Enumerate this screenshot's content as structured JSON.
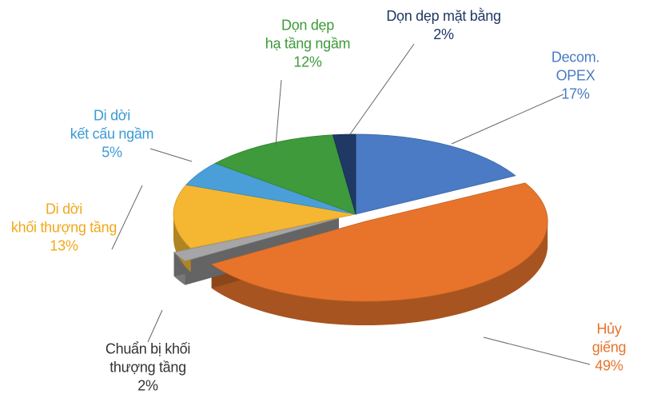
{
  "chart_data": {
    "type": "pie3d",
    "categories": [
      "Decom. OPEX",
      "Hủy giếng",
      "Chuẩn bị khối\nthượng tầng",
      "Di dời\nkhối thượng tầng",
      "Di dời\nkết cấu ngầm",
      "Dọn dẹp\nhạ tầng ngầm",
      "Dọn dẹp mặt bằng"
    ],
    "values": [
      17,
      49,
      2,
      13,
      5,
      12,
      2
    ],
    "value_labels": [
      "17%",
      "49%",
      "2%",
      "13%",
      "5%",
      "12%",
      "2%"
    ],
    "colors": [
      "#4a7bc4",
      "#e8742c",
      "#a6a6a6",
      "#f5b731",
      "#4a9fd8",
      "#3e9a3a",
      "#1f3864"
    ],
    "exploded": [
      1,
      2
    ]
  }
}
